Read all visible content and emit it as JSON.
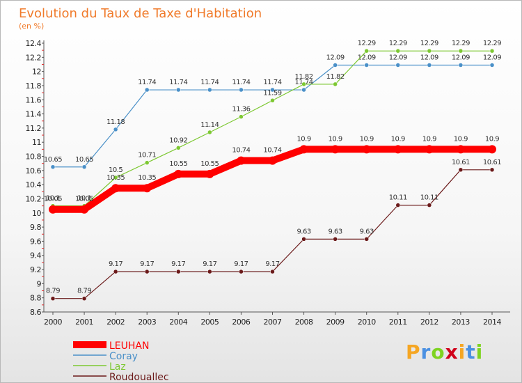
{
  "chart_data": {
    "type": "line",
    "title": "Evolution du Taux de Taxe d'Habitation",
    "subtitle": "(en %)",
    "x": [
      "2000",
      "2001",
      "2002",
      "2003",
      "2004",
      "2005",
      "2006",
      "2007",
      "2008",
      "2009",
      "2010",
      "2011",
      "2012",
      "2013",
      "2014"
    ],
    "ylim": [
      8.6,
      12.4
    ],
    "yticks": [
      "8.6",
      "8.8",
      "9",
      "9.2",
      "9.4",
      "9.6",
      "9.8",
      "10",
      "10.2",
      "10.4",
      "10.6",
      "10.8",
      "11",
      "11.2",
      "11.4",
      "11.6",
      "11.8",
      "12",
      "12.2",
      "12.4"
    ],
    "grid": false,
    "legend_position": "bottom-left",
    "series": [
      {
        "name": "LEUHAN",
        "color": "#ff0000",
        "bold": true,
        "values": [
          10.05,
          10.05,
          10.35,
          10.35,
          10.55,
          10.55,
          10.74,
          10.74,
          10.9,
          10.9,
          10.9,
          10.9,
          10.9,
          10.9,
          10.9
        ],
        "labels": [
          "10.05",
          "10.05",
          "10.35",
          "10.35",
          "10.55",
          "10.55",
          "10.74",
          "10.74",
          "10.9",
          "10.9",
          "10.9",
          "10.9",
          "10.9",
          "10.9",
          "10.9"
        ]
      },
      {
        "name": "Coray",
        "color": "#4a90c8",
        "bold": false,
        "values": [
          10.65,
          10.65,
          11.18,
          11.74,
          11.74,
          11.74,
          11.74,
          11.74,
          11.74,
          12.09,
          12.09,
          12.09,
          12.09,
          12.09,
          12.09
        ],
        "labels": [
          "10.65",
          "10.65",
          "11.18",
          "11.74",
          "11.74",
          "11.74",
          "11.74",
          "11.74",
          "11.74",
          "12.09",
          "12.09",
          "12.09",
          "12.09",
          "12.09",
          "12.09"
        ]
      },
      {
        "name": "Laz",
        "color": "#7dc832",
        "bold": false,
        "values": [
          10.1,
          10.1,
          10.5,
          10.71,
          10.92,
          11.14,
          11.36,
          11.59,
          11.82,
          11.82,
          12.29,
          12.29,
          12.29,
          12.29,
          12.29
        ],
        "labels": [
          "10.1",
          "10.1",
          "10.5",
          "10.71",
          "10.92",
          "11.14",
          "11.36",
          "11.59",
          "11.82",
          "11.82",
          "12.29",
          "12.29",
          "12.29",
          "12.29",
          "12.29"
        ]
      },
      {
        "name": "Roudouallec",
        "color": "#6b1a1a",
        "bold": false,
        "values": [
          8.79,
          8.79,
          9.17,
          9.17,
          9.17,
          9.17,
          9.17,
          9.17,
          9.63,
          9.63,
          9.63,
          10.11,
          10.11,
          10.61,
          10.61
        ],
        "labels": [
          "8.79",
          "8.79",
          "9.17",
          "9.17",
          "9.17",
          "9.17",
          "9.17",
          "9.17",
          "9.63",
          "9.63",
          "9.63",
          "10.11",
          "10.11",
          "10.61",
          "10.61"
        ]
      }
    ]
  },
  "logo": {
    "letters": [
      "P",
      "r",
      "o",
      "x",
      "i",
      "t",
      "i"
    ],
    "colors": [
      "#f5a623",
      "#4a90e2",
      "#7ed321",
      "#d0021b",
      "#f5a623",
      "#4a90e2",
      "#7ed321"
    ]
  }
}
